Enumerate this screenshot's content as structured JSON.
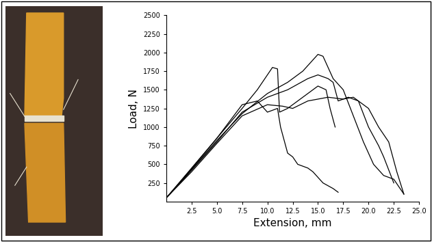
{
  "chart_data": {
    "type": "line",
    "x_label": "Extension, mm",
    "y_label": "Load, N",
    "xlim": [
      0,
      25
    ],
    "ylim": [
      0,
      2500
    ],
    "xticks": [
      {
        "value": 2.5,
        "label": "2.5"
      },
      {
        "value": 5,
        "label": "5.0"
      },
      {
        "value": 7.5,
        "label": "7.5"
      },
      {
        "value": 10,
        "label": "10.0"
      },
      {
        "value": 12.5,
        "label": "12.5"
      },
      {
        "value": 15,
        "label": "15.0"
      },
      {
        "value": 17.5,
        "label": "17.5"
      },
      {
        "value": 20,
        "label": "20.0"
      },
      {
        "value": 22.5,
        "label": "22.5"
      },
      {
        "value": 25,
        "label": "25.0"
      }
    ],
    "yticks": [
      250,
      500,
      750,
      1000,
      1250,
      1500,
      1750,
      2000,
      2250,
      2500
    ],
    "grid": false,
    "color": "#000000",
    "series": [
      {
        "x": [
          0,
          2.5,
          5,
          7.5,
          9,
          10,
          10.5,
          11,
          11.2,
          12,
          13,
          14,
          15,
          15.8,
          16.2,
          16.7
        ],
        "values": [
          50,
          450,
          850,
          1250,
          1500,
          1700,
          1800,
          1780,
          1200,
          1250,
          1350,
          1450,
          1550,
          1500,
          1250,
          1000
        ]
      },
      {
        "x": [
          0,
          2.5,
          5,
          7.5,
          10,
          12,
          13.5,
          14.5,
          15,
          15.5,
          16,
          16.5,
          17.5,
          18.5,
          19.5,
          20.5,
          21.5,
          22.5,
          23.5
        ],
        "values": [
          50,
          430,
          820,
          1180,
          1450,
          1600,
          1750,
          1900,
          1975,
          1950,
          1800,
          1650,
          1500,
          1150,
          800,
          500,
          350,
          300,
          100
        ]
      },
      {
        "x": [
          0,
          2.5,
          5,
          7.5,
          9,
          10,
          11,
          11.3,
          12,
          12.5,
          13,
          14,
          14.5,
          15.5,
          16.5,
          17
        ],
        "values": [
          50,
          440,
          850,
          1300,
          1350,
          1200,
          1250,
          1000,
          650,
          600,
          500,
          450,
          400,
          250,
          175,
          125
        ]
      },
      {
        "x": [
          0,
          2.5,
          5,
          7.5,
          10,
          12,
          14,
          15,
          16,
          16.5,
          17,
          18,
          19,
          20,
          21,
          21.5,
          22.5
        ],
        "values": [
          50,
          420,
          800,
          1200,
          1400,
          1500,
          1650,
          1700,
          1650,
          1600,
          1350,
          1400,
          1350,
          1000,
          750,
          600,
          250
        ]
      },
      {
        "x": [
          0,
          2.5,
          5,
          7.5,
          10,
          11.5,
          12.5,
          14,
          16,
          17.5,
          18.5,
          20,
          21,
          22,
          22.8,
          23.5
        ],
        "values": [
          50,
          400,
          780,
          1150,
          1300,
          1280,
          1250,
          1350,
          1400,
          1375,
          1400,
          1250,
          1000,
          800,
          400,
          100
        ]
      }
    ]
  }
}
